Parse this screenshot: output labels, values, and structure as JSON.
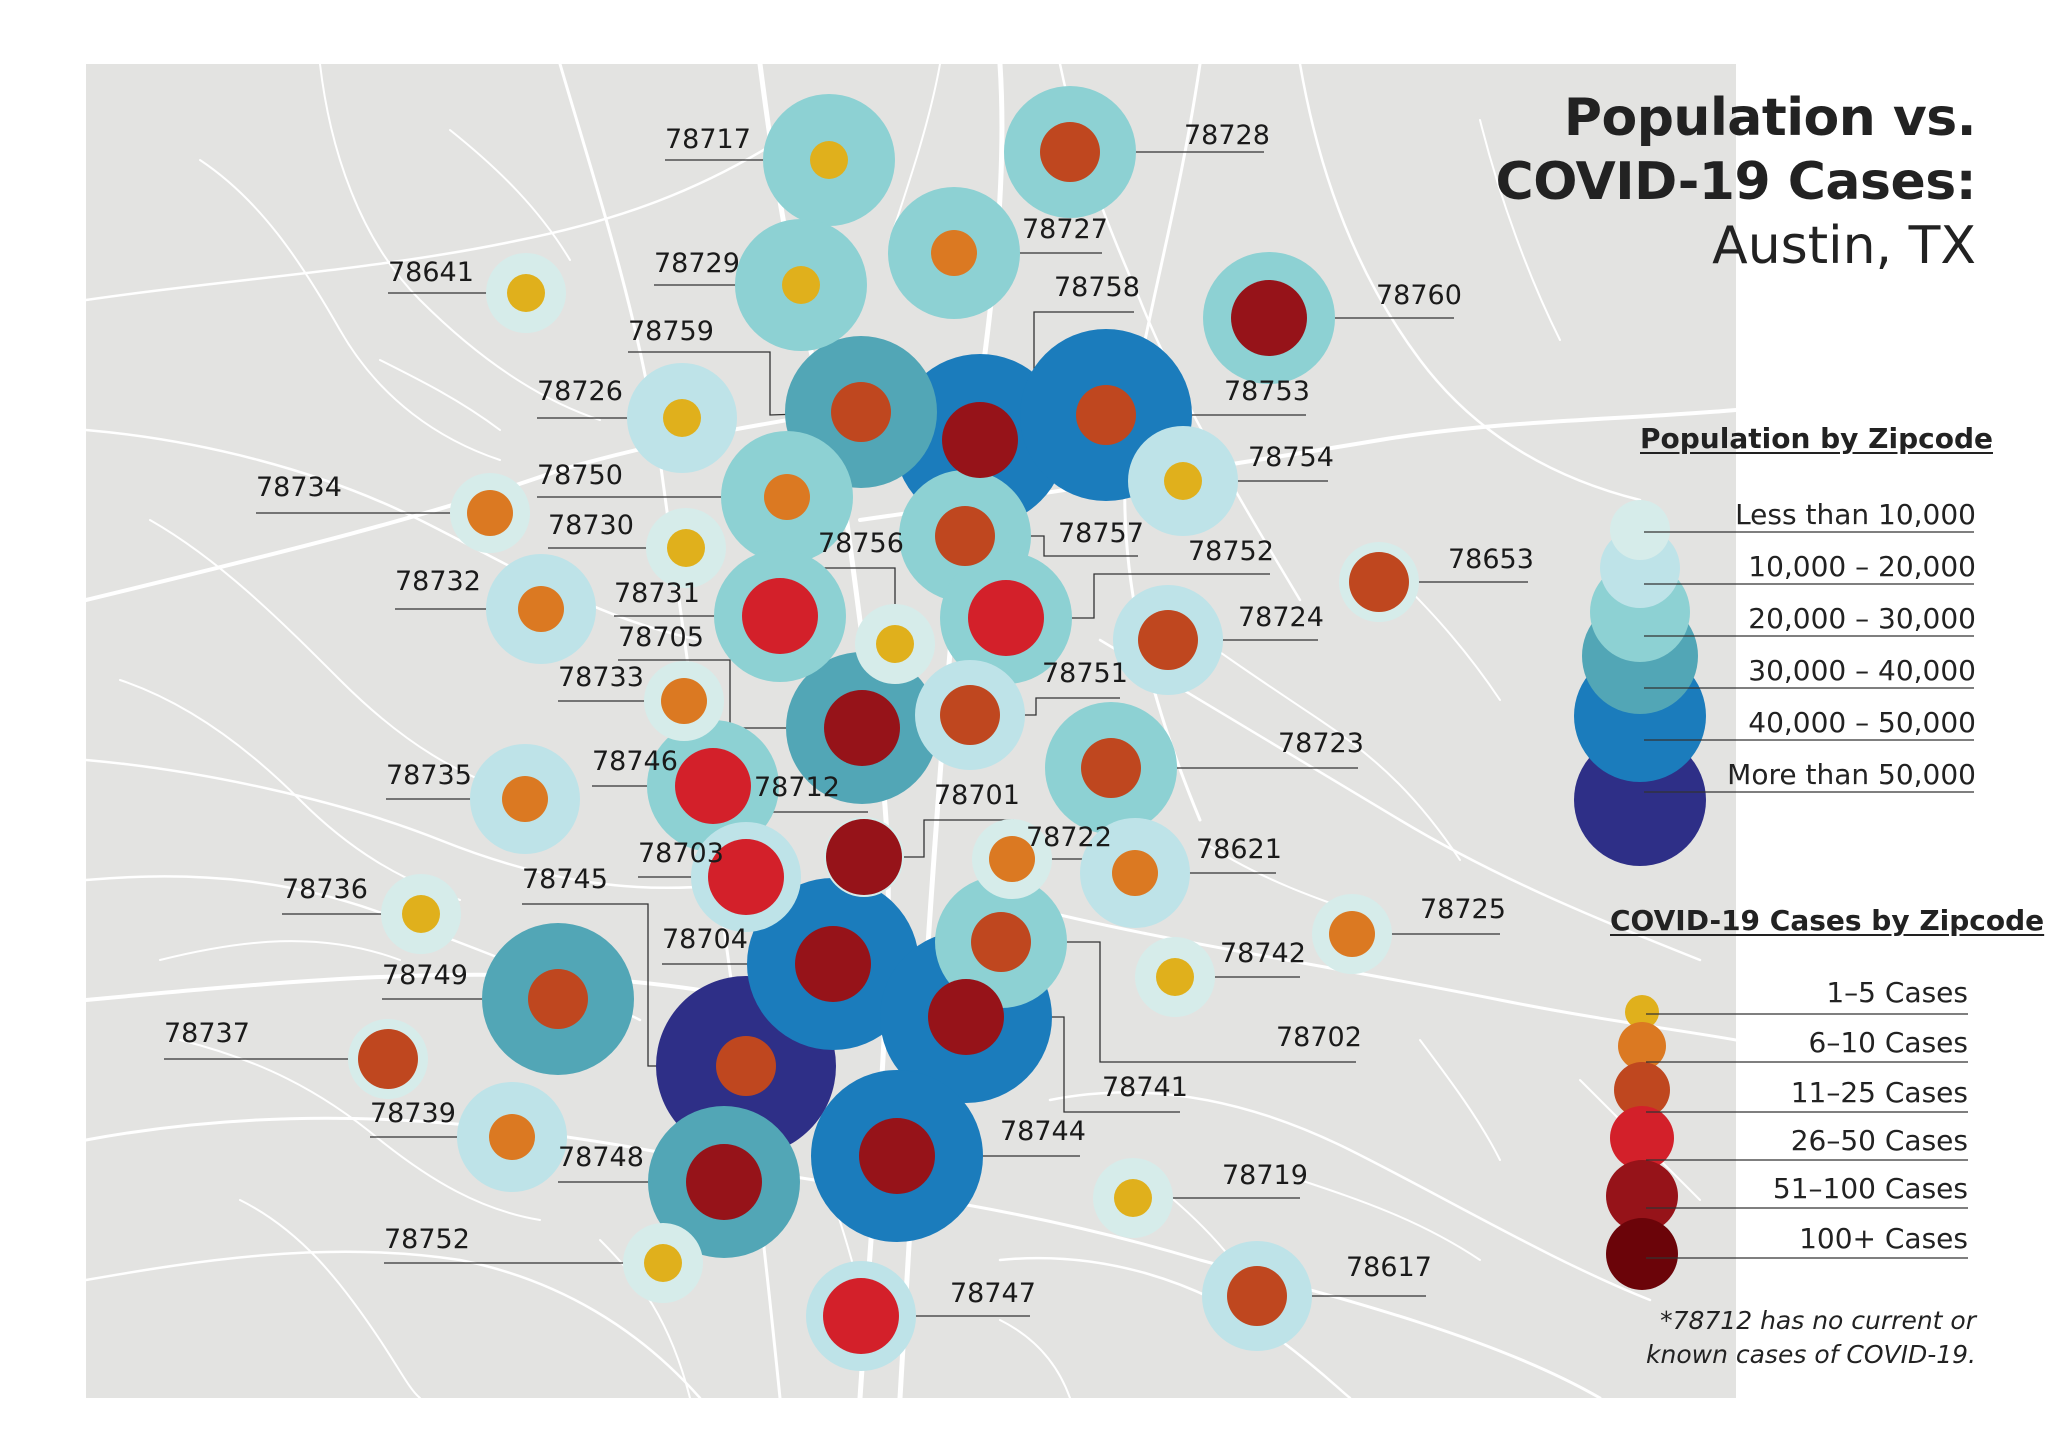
{
  "title": {
    "line1": "Population vs.",
    "line2": "COVID-19 Cases:",
    "line3": "Austin, TX"
  },
  "colors": {
    "land": "#e3e3e1",
    "roads": "#ffffff",
    "population": [
      "#d6ecea",
      "#bee3e8",
      "#8dd1d3",
      "#52a6b6",
      "#1b7cbc",
      "#2e2f87"
    ],
    "cases": [
      "#e0b01c",
      "#db7922",
      "#bf471f",
      "#d3202a",
      "#961319",
      "#6b0409"
    ]
  },
  "population_legend": {
    "heading": "Population by Zipcode",
    "labels": [
      "Less than 10,000",
      "10,000 – 20,000",
      "20,000 – 30,000",
      "30,000 – 40,000",
      "40,000 – 50,000",
      "More than 50,000"
    ]
  },
  "cases_legend": {
    "heading": "COVID-19 Cases by Zipcode",
    "labels": [
      "1–5 Cases",
      "6–10 Cases",
      "11–25 Cases",
      "26–50 Cases",
      "51–100 Cases",
      "100+ Cases"
    ]
  },
  "footnote": {
    "line1": "*78712 has no current or",
    "line2": "known cases of COVID-19."
  },
  "zipcodes": [
    {
      "zip": "78717",
      "population_level": 3,
      "cases_level": 1
    },
    {
      "zip": "78728",
      "population_level": 3,
      "cases_level": 3
    },
    {
      "zip": "78727",
      "population_level": 3,
      "cases_level": 2
    },
    {
      "zip": "78729",
      "population_level": 3,
      "cases_level": 1
    },
    {
      "zip": "78641",
      "population_level": 1,
      "cases_level": 1
    },
    {
      "zip": "78758",
      "population_level": 5,
      "cases_level": 5
    },
    {
      "zip": "78760",
      "population_level": 3,
      "cases_level": 5
    },
    {
      "zip": "78759",
      "population_level": 4,
      "cases_level": 3
    },
    {
      "zip": "78753",
      "population_level": 5,
      "cases_level": 3
    },
    {
      "zip": "78726",
      "population_level": 2,
      "cases_level": 1
    },
    {
      "zip": "78754",
      "population_level": 2,
      "cases_level": 1
    },
    {
      "zip": "78750",
      "population_level": 3,
      "cases_level": 2
    },
    {
      "zip": "78734",
      "population_level": 1,
      "cases_level": 2
    },
    {
      "zip": "78730",
      "population_level": 1,
      "cases_level": 1
    },
    {
      "zip": "78757",
      "population_level": 3,
      "cases_level": 3
    },
    {
      "zip": "78756",
      "population_level": 1,
      "cases_level": 1
    },
    {
      "zip": "78752",
      "population_level": 3,
      "cases_level": 4
    },
    {
      "zip": "78653",
      "population_level": 1,
      "cases_level": 3
    },
    {
      "zip": "78732",
      "population_level": 2,
      "cases_level": 2
    },
    {
      "zip": "78731",
      "population_level": 3,
      "cases_level": 4
    },
    {
      "zip": "78724",
      "population_level": 2,
      "cases_level": 3
    },
    {
      "zip": "78705",
      "population_level": 4,
      "cases_level": 5
    },
    {
      "zip": "78733",
      "population_level": 1,
      "cases_level": 2
    },
    {
      "zip": "78751",
      "population_level": 2,
      "cases_level": 3
    },
    {
      "zip": "78723",
      "population_level": 3,
      "cases_level": 3
    },
    {
      "zip": "78735",
      "population_level": 2,
      "cases_level": 2
    },
    {
      "zip": "78746",
      "population_level": 3,
      "cases_level": 4
    },
    {
      "zip": "78712",
      "population_level": 1,
      "cases_level": 0
    },
    {
      "zip": "78701",
      "population_level": 1,
      "cases_level": 5
    },
    {
      "zip": "78722",
      "population_level": 1,
      "cases_level": 2
    },
    {
      "zip": "78621",
      "population_level": 2,
      "cases_level": 2
    },
    {
      "zip": "78703",
      "population_level": 2,
      "cases_level": 4
    },
    {
      "zip": "78736",
      "population_level": 1,
      "cases_level": 1
    },
    {
      "zip": "78745",
      "population_level": 6,
      "cases_level": 3
    },
    {
      "zip": "78725",
      "population_level": 1,
      "cases_level": 2
    },
    {
      "zip": "78704",
      "population_level": 5,
      "cases_level": 5
    },
    {
      "zip": "78742",
      "population_level": 1,
      "cases_level": 1
    },
    {
      "zip": "78749",
      "population_level": 4,
      "cases_level": 3
    },
    {
      "zip": "78702",
      "population_level": 3,
      "cases_level": 3
    },
    {
      "zip": "78741",
      "population_level": 5,
      "cases_level": 5
    },
    {
      "zip": "78737",
      "population_level": 1,
      "cases_level": 3
    },
    {
      "zip": "78739",
      "population_level": 2,
      "cases_level": 2
    },
    {
      "zip": "78744",
      "population_level": 5,
      "cases_level": 5
    },
    {
      "zip": "78748",
      "population_level": 4,
      "cases_level": 5
    },
    {
      "zip": "78719",
      "population_level": 1,
      "cases_level": 1
    },
    {
      "zip": "78752",
      "population_level": 1,
      "cases_level": 1
    },
    {
      "zip": "78747",
      "population_level": 2,
      "cases_level": 4
    },
    {
      "zip": "78617",
      "population_level": 2,
      "cases_level": 3
    }
  ]
}
